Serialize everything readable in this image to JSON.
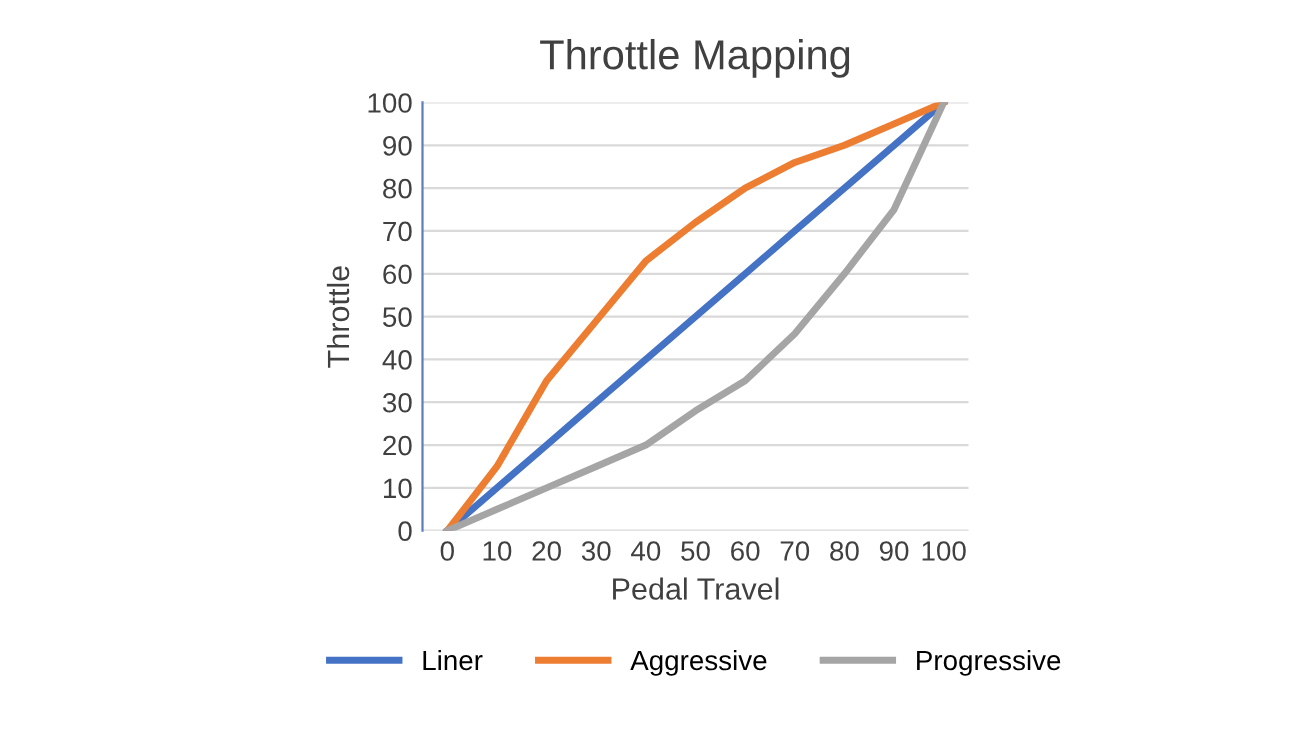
{
  "chart_data": {
    "type": "line",
    "title": "Throttle Mapping",
    "xlabel": "Pedal Travel",
    "ylabel": "Throttle",
    "categories": [
      "0",
      "10",
      "20",
      "30",
      "40",
      "50",
      "60",
      "70",
      "80",
      "90",
      "100"
    ],
    "series": [
      {
        "name": "Liner",
        "color": "#4472c4",
        "values": [
          0,
          10,
          20,
          30,
          40,
          50,
          60,
          70,
          80,
          90,
          100
        ]
      },
      {
        "name": "Aggressive",
        "color": "#ed7d31",
        "values": [
          0,
          15,
          35,
          49,
          63,
          72,
          80,
          86,
          90,
          95,
          100
        ]
      },
      {
        "name": "Progressive",
        "color": "#a5a5a5",
        "values": [
          0,
          5,
          10,
          15,
          20,
          28,
          35,
          46,
          60,
          75,
          100
        ]
      }
    ],
    "ylim": [
      0,
      100
    ],
    "yticks": [
      0,
      10,
      20,
      30,
      40,
      50,
      60,
      70,
      80,
      90,
      100
    ],
    "grid": "y",
    "legend": "bottom",
    "marker": "none",
    "line_style": "solid"
  }
}
